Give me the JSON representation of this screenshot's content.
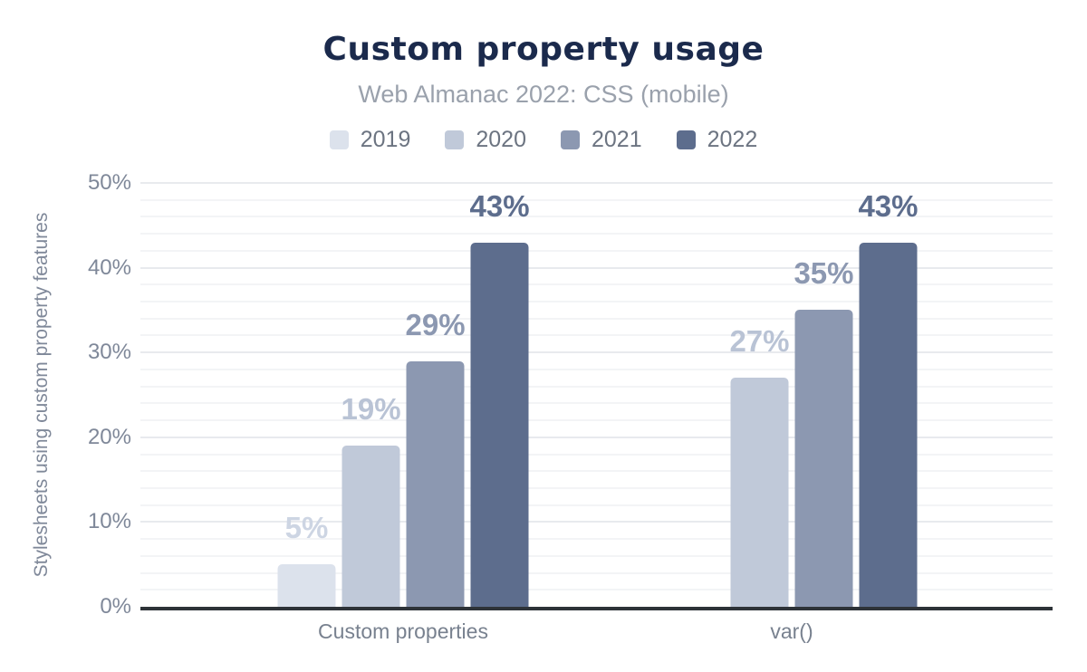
{
  "chart_data": {
    "type": "bar",
    "title": "Custom property usage",
    "subtitle": "Web Almanac 2022: CSS (mobile)",
    "ylabel": "Stylesheets using custom property features",
    "xlabel": "",
    "categories": [
      "Custom properties",
      "var()"
    ],
    "series": [
      {
        "name": "2019",
        "color": "#dce2ec",
        "label_color": "#cdd5e3",
        "values": [
          5,
          null
        ],
        "labels": [
          "5%",
          null
        ]
      },
      {
        "name": "2020",
        "color": "#c0c9d9",
        "label_color": "#b9c3d5",
        "values": [
          19,
          27
        ],
        "labels": [
          "19%",
          "27%"
        ]
      },
      {
        "name": "2021",
        "color": "#8c98b1",
        "label_color": "#8c98b1",
        "values": [
          29,
          35
        ],
        "labels": [
          "29%",
          "35%"
        ]
      },
      {
        "name": "2022",
        "color": "#5d6d8d",
        "label_color": "#5d6d8d",
        "values": [
          43,
          43
        ],
        "labels": [
          "43%",
          "43%"
        ]
      }
    ],
    "ylim": [
      0,
      50
    ],
    "yticks": [
      {
        "value": 0,
        "label": "0%"
      },
      {
        "value": 10,
        "label": "10%"
      },
      {
        "value": 20,
        "label": "20%"
      },
      {
        "value": 30,
        "label": "30%"
      },
      {
        "value": 40,
        "label": "40%"
      },
      {
        "value": 50,
        "label": "50%"
      }
    ],
    "minor_grid_step": 2,
    "major_grid_step": 10,
    "grid": true,
    "legend_position": "top"
  },
  "colors": {
    "title_text": "#1b2a4c",
    "subtitle_text": "#9aa1ac",
    "legend_text": "#6c7481",
    "tick_text": "#7f8899",
    "category_text": "#78818f",
    "axis_line": "#2e3338",
    "grid_minor": "#f3f4f6",
    "grid_major": "#e8eaee",
    "background": "#ffffff"
  }
}
